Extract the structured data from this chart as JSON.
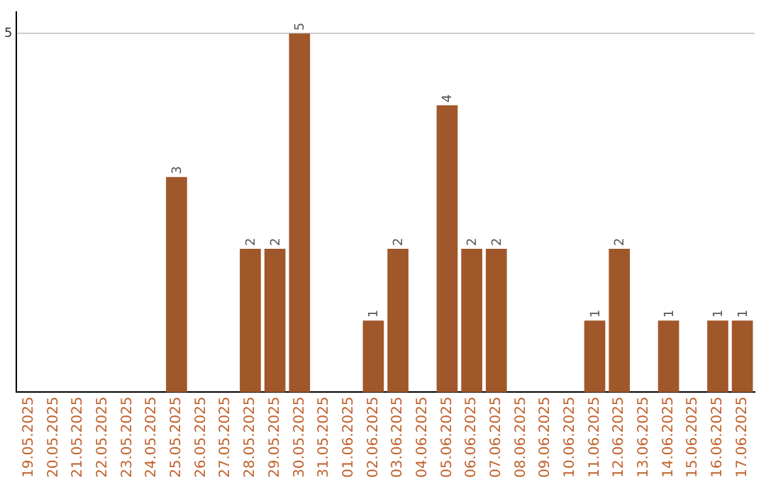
{
  "chart_data": {
    "type": "bar",
    "categories": [
      "19.05.2025",
      "20.05.2025",
      "21.05.2025",
      "22.05.2025",
      "23.05.2025",
      "24.05.2025",
      "25.05.2025",
      "26.05.2025",
      "27.05.2025",
      "28.05.2025",
      "29.05.2025",
      "30.05.2025",
      "31.05.2025",
      "01.06.2025",
      "02.06.2025",
      "03.06.2025",
      "04.06.2025",
      "05.06.2025",
      "06.06.2025",
      "07.06.2025",
      "08.06.2025",
      "09.06.2025",
      "10.06.2025",
      "11.06.2025",
      "12.06.2025",
      "13.06.2025",
      "14.06.2025",
      "15.06.2025",
      "16.06.2025",
      "17.06.2025"
    ],
    "values": [
      0,
      0,
      0,
      0,
      0,
      0,
      3,
      0,
      0,
      2,
      2,
      5,
      0,
      0,
      1,
      2,
      0,
      4,
      2,
      2,
      0,
      0,
      0,
      1,
      2,
      0,
      1,
      0,
      1,
      1
    ],
    "color": "#a0572a",
    "value_labels": [
      null,
      null,
      null,
      null,
      null,
      null,
      "3",
      null,
      null,
      "2",
      "2",
      "5",
      null,
      null,
      "1",
      "2",
      null,
      "4",
      "2",
      "2",
      null,
      null,
      null,
      "1",
      "2",
      null,
      "1",
      null,
      "1",
      "1"
    ],
    "ylim": [
      0,
      5.3
    ],
    "yticks": [
      5
    ],
    "grid": "y",
    "legend": false
  }
}
